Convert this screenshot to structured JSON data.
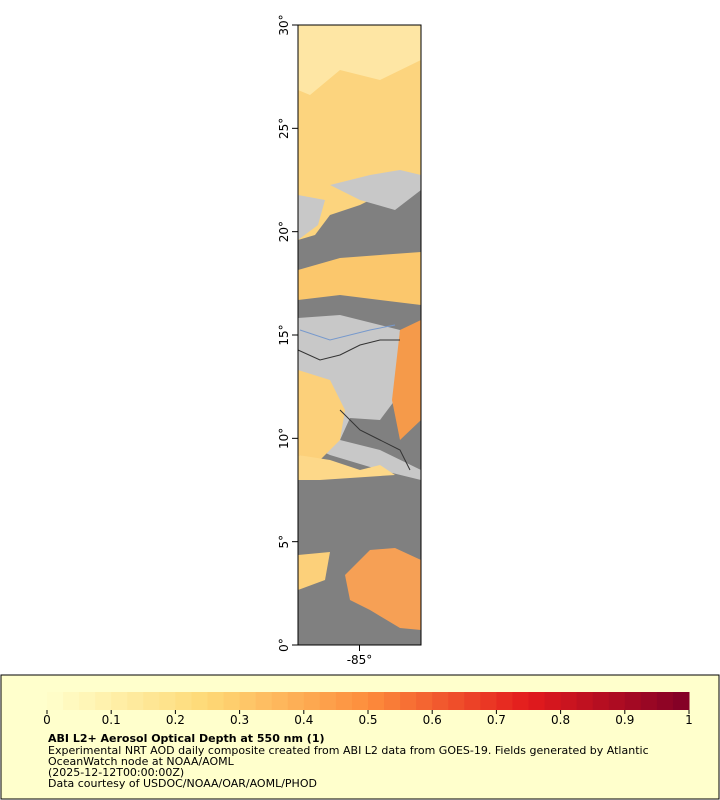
{
  "chart_data": {
    "type": "map",
    "xlim": [
      -88,
      -82
    ],
    "ylim": [
      0,
      30
    ],
    "xticks": [
      {
        "value": -85,
        "label": "-85°"
      }
    ],
    "yticks": [
      {
        "value": 0,
        "label": "0°"
      },
      {
        "value": 5,
        "label": "5°"
      },
      {
        "value": 10,
        "label": "10°"
      },
      {
        "value": 15,
        "label": "15°"
      },
      {
        "value": 20,
        "label": "20°"
      },
      {
        "value": 25,
        "label": "25°"
      },
      {
        "value": 30,
        "label": "30°"
      }
    ],
    "colorbar": {
      "range": [
        0,
        1
      ],
      "ticks": [
        0,
        0.1,
        0.2,
        0.3,
        0.4,
        0.5,
        0.6,
        0.7,
        0.8,
        0.9,
        1
      ]
    },
    "legend_title": "ABI L2+ Aerosol Optical Depth at 550 nm (1)",
    "legend_lines": [
      "Experimental NRT AOD daily composite created from ABI L2 data from GOES-19. Fields generated by Atlantic",
      "OceanWatch node at NOAA/AOML",
      "(2025-12-12T00:00:00Z)",
      "Data courtesy of USDOC/NOAA/OAR/AOML/PHOD"
    ]
  }
}
